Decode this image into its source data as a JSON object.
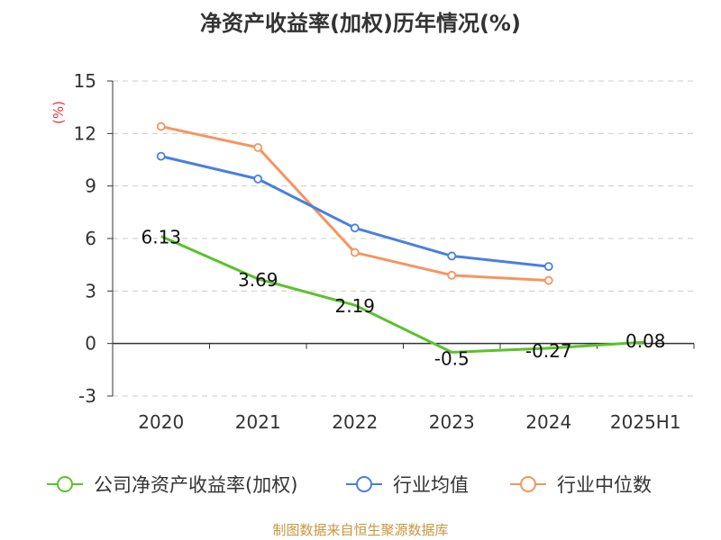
{
  "chart_data": {
    "type": "line",
    "title": "净资产收益率(加权)历年情况(%)",
    "ylabel": "(%)",
    "xlabel": "",
    "categories": [
      "2020",
      "2021",
      "2022",
      "2023",
      "2024",
      "2025H1"
    ],
    "ylim": [
      -3,
      15
    ],
    "yticks": [
      -3,
      0,
      3,
      6,
      9,
      12,
      15
    ],
    "grid": true,
    "legend_position": "bottom",
    "series": [
      {
        "name": "公司净资产收益率(加权)",
        "color": "#5cc12c",
        "values": [
          6.13,
          3.69,
          2.19,
          -0.5,
          -0.27,
          0.08
        ],
        "labels": [
          "6.13",
          "3.69",
          "2.19",
          "-0.5",
          "-0.27",
          "0.08"
        ]
      },
      {
        "name": "行业均值",
        "color": "#4a7fe0",
        "values": [
          10.7,
          9.4,
          6.6,
          5.0,
          4.4,
          null
        ]
      },
      {
        "name": "行业中位数",
        "color": "#f7945e",
        "values": [
          12.4,
          11.2,
          5.2,
          3.9,
          3.6,
          null
        ]
      }
    ]
  },
  "footer": {
    "source": "制图数据来自恒生聚源数据库"
  }
}
